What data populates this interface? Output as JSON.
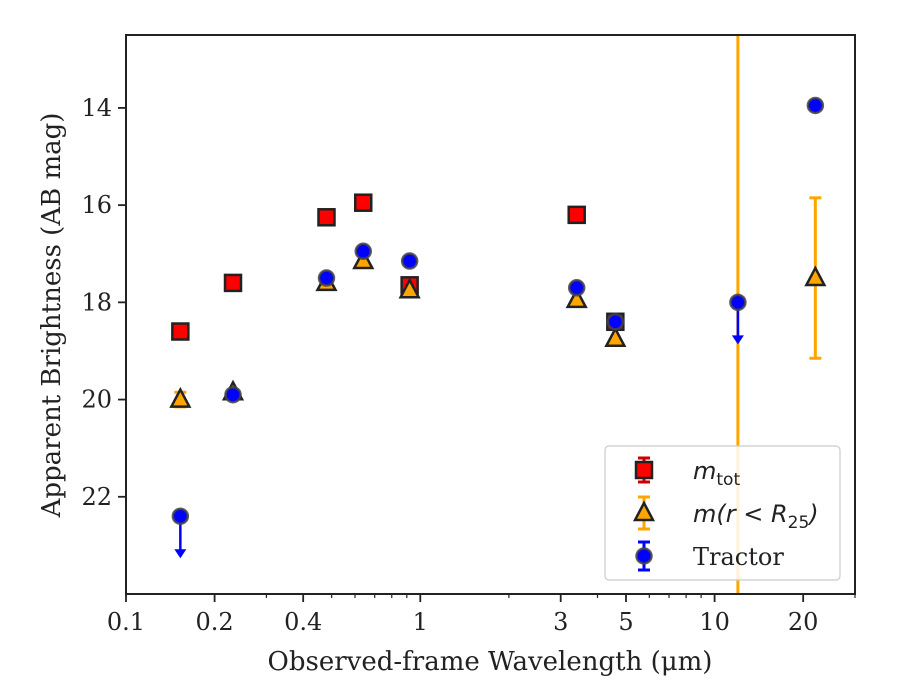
{
  "chart_data": {
    "type": "scatter",
    "title": "",
    "xlabel": "Observed-frame Wavelength (μm)",
    "ylabel": "Apparent Brightness (AB mag)",
    "xscale": "log",
    "xlim": [
      0.1,
      30
    ],
    "ylim": [
      24.0,
      12.5
    ],
    "y_inverted": true,
    "x_ticks": [
      0.1,
      0.2,
      0.4,
      1,
      3,
      5,
      10,
      20
    ],
    "x_tick_labels": [
      "0.1",
      "0.2",
      "0.4",
      "1",
      "3",
      "5",
      "10",
      "20"
    ],
    "y_ticks": [
      14,
      16,
      18,
      20,
      22
    ],
    "y_tick_labels": [
      "14",
      "16",
      "18",
      "20",
      "22"
    ],
    "grid": false,
    "legend_position": "lower-right",
    "series": [
      {
        "name": "m_tot",
        "marker": "square",
        "color": "#ff0000",
        "edge_color": "#222222",
        "error_color": "#cc0000",
        "points": [
          {
            "x": 0.153,
            "y": 18.6
          },
          {
            "x": 0.231,
            "y": 17.6
          },
          {
            "x": 0.48,
            "y": 16.25
          },
          {
            "x": 0.64,
            "y": 15.95
          },
          {
            "x": 0.92,
            "y": 17.65
          },
          {
            "x": 3.4,
            "y": 16.2
          },
          {
            "x": 4.6,
            "y": 18.4
          }
        ]
      },
      {
        "name": "m(r < R25)",
        "marker": "triangle",
        "color": "#ffa500",
        "edge_color": "#222222",
        "error_color": "#ffa500",
        "points": [
          {
            "x": 0.153,
            "y": 20.0,
            "err": 0.15
          },
          {
            "x": 0.231,
            "y": 19.85
          },
          {
            "x": 0.48,
            "y": 17.6
          },
          {
            "x": 0.64,
            "y": 17.15
          },
          {
            "x": 0.92,
            "y": 17.75
          },
          {
            "x": 3.4,
            "y": 17.95
          },
          {
            "x": 4.6,
            "y": 18.75
          },
          {
            "x": 22.0,
            "y": 17.5,
            "err": 1.65
          }
        ]
      },
      {
        "name": "Tractor",
        "marker": "circle",
        "color": "#0000ff",
        "edge_color": "#444444",
        "error_color": "#0000ff",
        "points": [
          {
            "x": 0.153,
            "y": 22.4,
            "upper_limit": true
          },
          {
            "x": 0.231,
            "y": 19.9
          },
          {
            "x": 0.48,
            "y": 17.5
          },
          {
            "x": 0.64,
            "y": 16.95
          },
          {
            "x": 0.92,
            "y": 17.15
          },
          {
            "x": 3.4,
            "y": 17.7
          },
          {
            "x": 4.6,
            "y": 18.4
          },
          {
            "x": 12.0,
            "y": 18.0,
            "upper_limit": true
          },
          {
            "x": 22.0,
            "y": 13.95
          }
        ]
      }
    ],
    "vertical_lines": [
      {
        "x": 12.0,
        "color": "#ffa500"
      }
    ]
  },
  "legend": {
    "items": [
      {
        "math": "m",
        "sub": "tot"
      },
      {
        "math": "m(r < R",
        "sub": "25",
        "close": ")"
      },
      {
        "text": "Tractor"
      }
    ]
  }
}
